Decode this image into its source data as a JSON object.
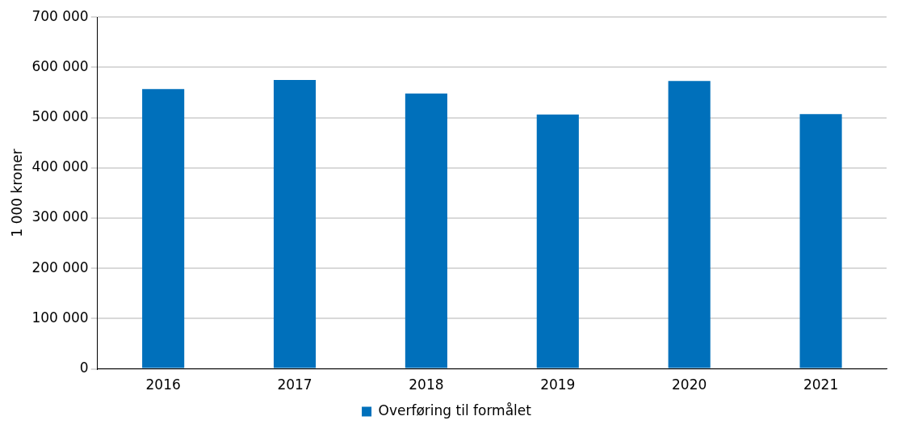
{
  "chart_data": {
    "type": "bar",
    "ylabel": "1 000 kroner",
    "categories": [
      "2016",
      "2017",
      "2018",
      "2019",
      "2020",
      "2021"
    ],
    "series": [
      {
        "name": "Overføring til formålet",
        "color": "#0070bb",
        "values": [
          557000,
          575000,
          548000,
          506000,
          573000,
          507000
        ]
      }
    ],
    "ylim": [
      0,
      700000
    ],
    "yticks": [
      {
        "value": 0,
        "label": "0"
      },
      {
        "value": 100000,
        "label": "100 000"
      },
      {
        "value": 200000,
        "label": "200 000"
      },
      {
        "value": 300000,
        "label": "300 000"
      },
      {
        "value": 400000,
        "label": "400 000"
      },
      {
        "value": 500000,
        "label": "500 000"
      },
      {
        "value": 600000,
        "label": "600 000"
      },
      {
        "value": 700000,
        "label": "700 000"
      }
    ],
    "grid": "y",
    "legend": "bottom"
  }
}
